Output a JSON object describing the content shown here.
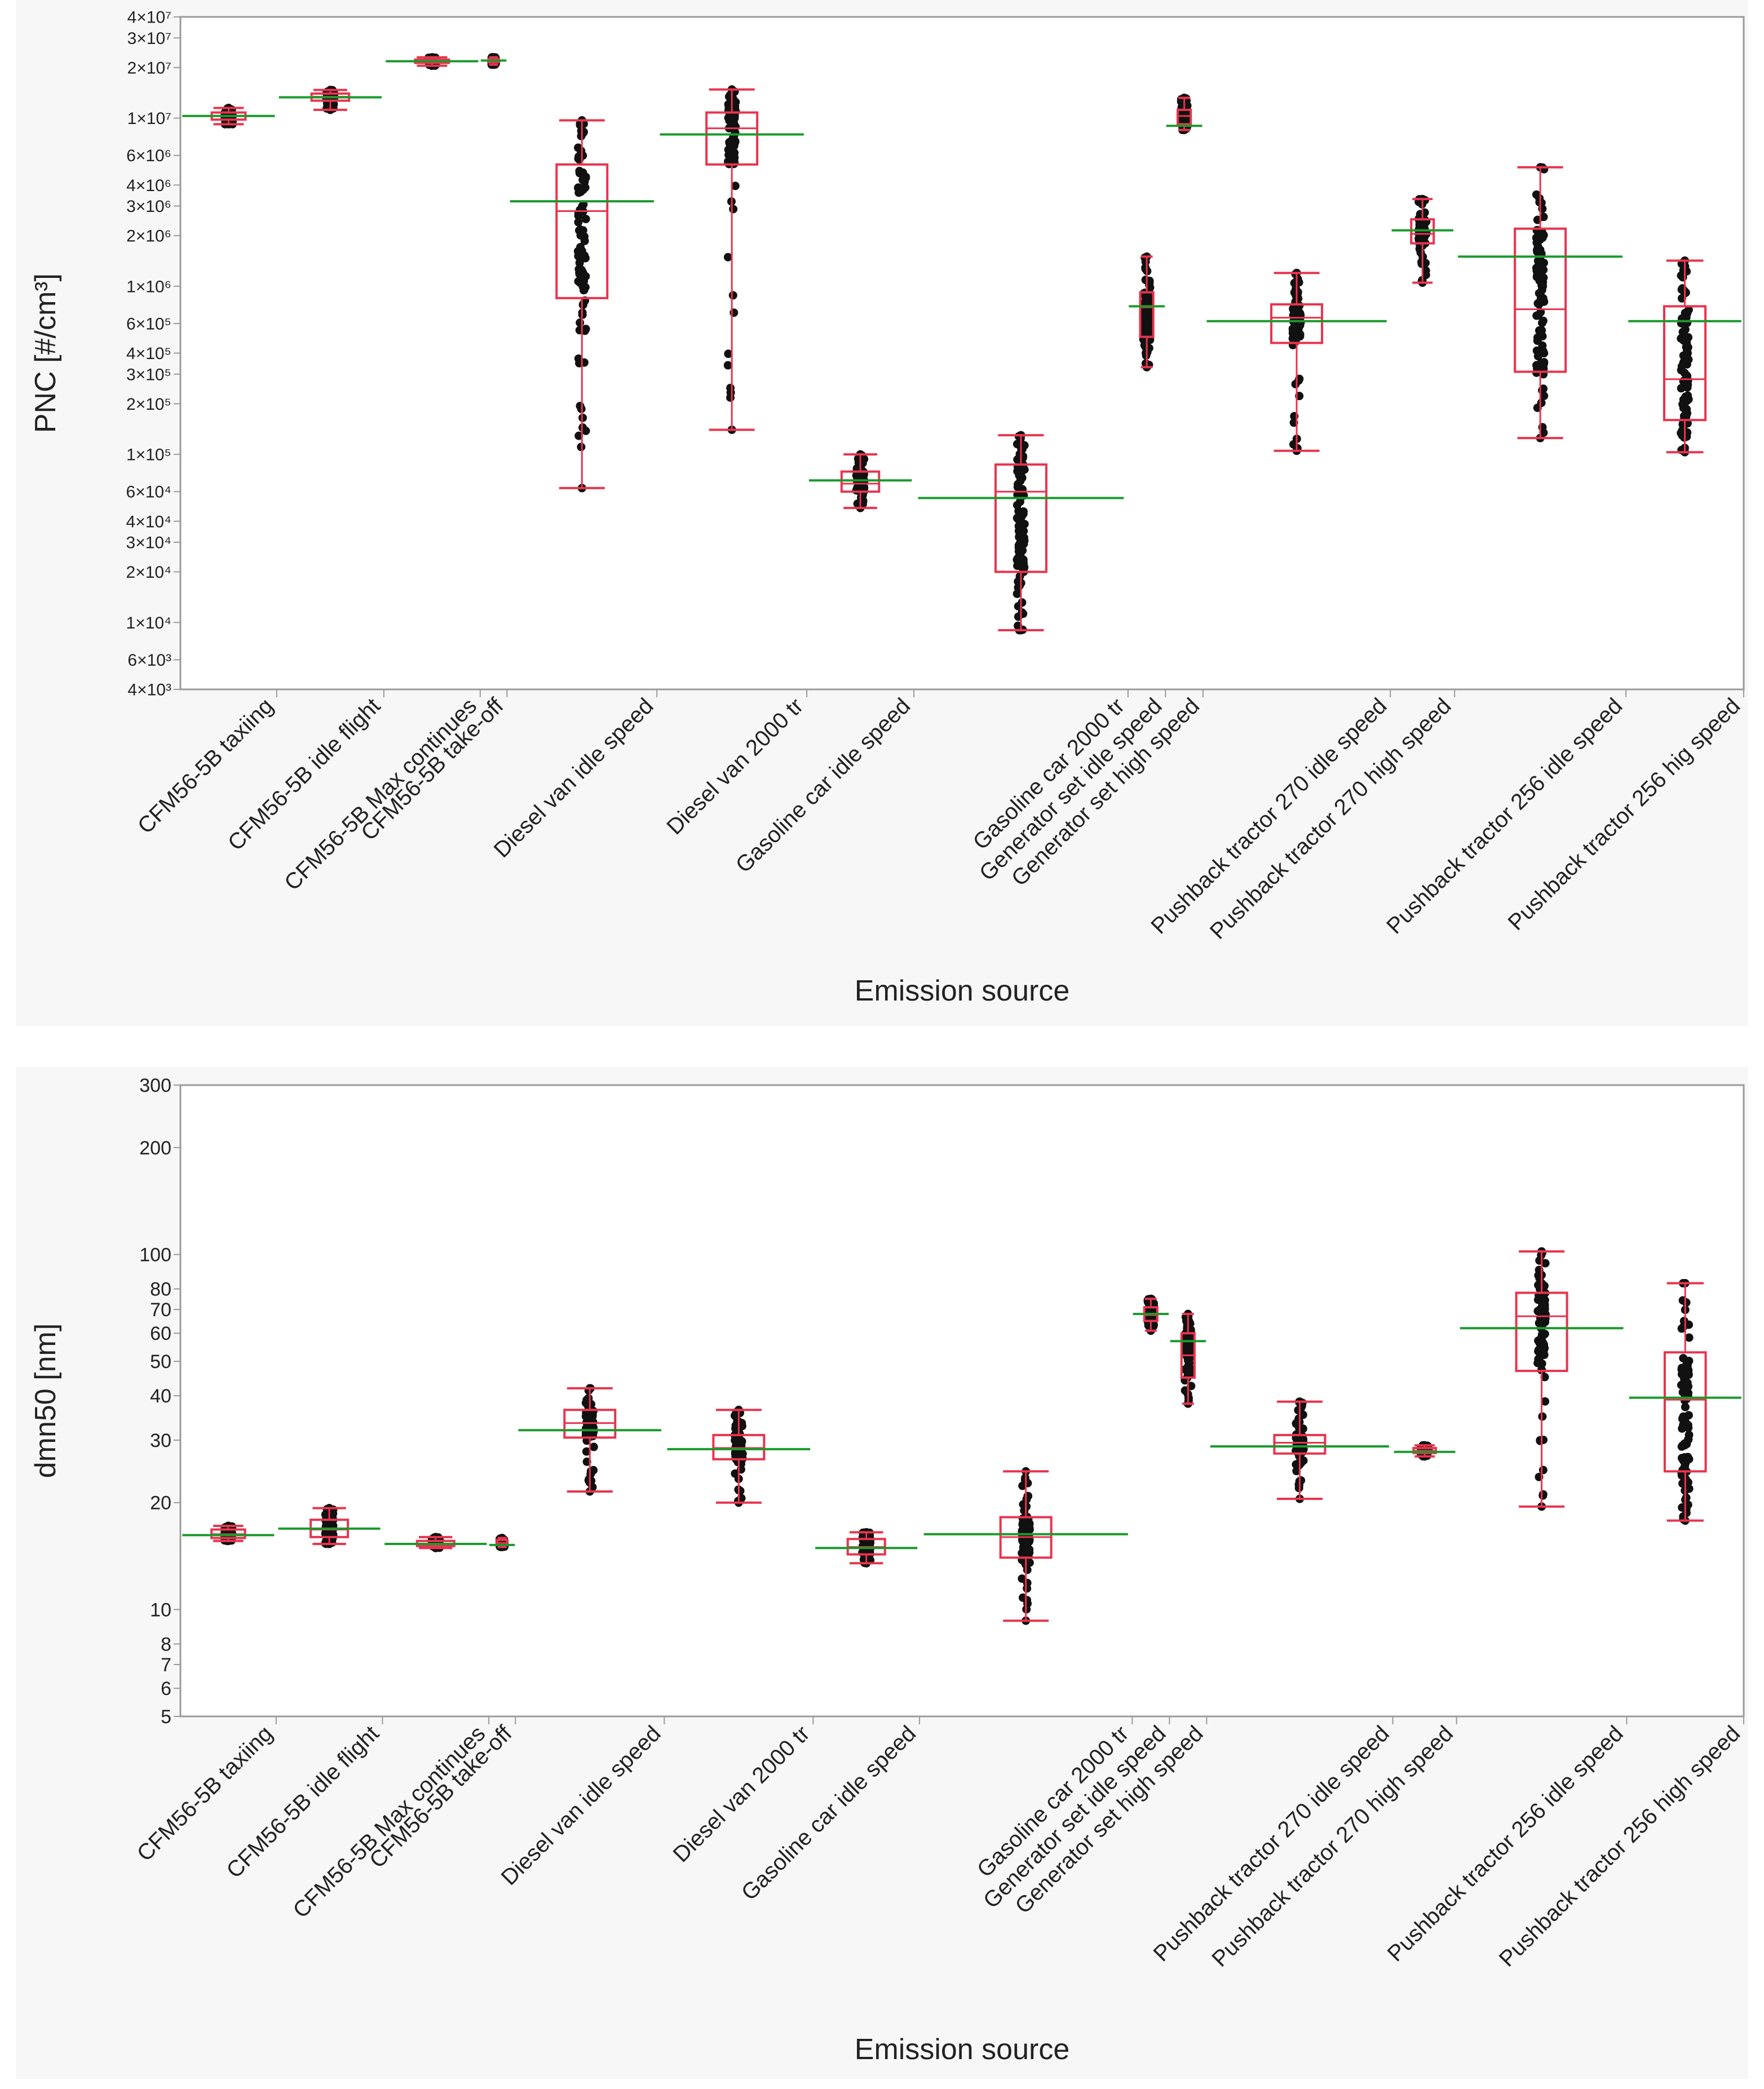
{
  "chart_data": [
    {
      "type": "box",
      "scale": "log",
      "ylabel": "PNC  [#/cm³]",
      "xlabel": "Emission source",
      "ylim": [
        4000,
        40000000
      ],
      "y_ticks": [
        {
          "value": 4000,
          "label": "4×10³"
        },
        {
          "value": 6000,
          "label": "6×10³"
        },
        {
          "value": 10000,
          "label": "1×10⁴"
        },
        {
          "value": 20000,
          "label": "2×10⁴"
        },
        {
          "value": 30000,
          "label": "3×10⁴"
        },
        {
          "value": 40000,
          "label": "4×10⁴"
        },
        {
          "value": 60000,
          "label": "6×10⁴"
        },
        {
          "value": 100000,
          "label": "1×10⁵"
        },
        {
          "value": 200000,
          "label": "2×10⁵"
        },
        {
          "value": 300000,
          "label": "3×10⁵"
        },
        {
          "value": 400000,
          "label": "4×10⁵"
        },
        {
          "value": 600000,
          "label": "6×10⁵"
        },
        {
          "value": 1000000,
          "label": "1×10⁶"
        },
        {
          "value": 2000000,
          "label": "2×10⁶"
        },
        {
          "value": 3000000,
          "label": "3×10⁶"
        },
        {
          "value": 4000000,
          "label": "4×10⁶"
        },
        {
          "value": 6000000,
          "label": "6×10⁶"
        },
        {
          "value": 10000000,
          "label": "1×10⁷"
        },
        {
          "value": 20000000,
          "label": "2×10⁷"
        },
        {
          "value": 30000000,
          "label": "3×10⁷"
        },
        {
          "value": 40000000,
          "label": "4×10⁷"
        }
      ],
      "categories": [
        {
          "name": "CFM56-5B  taxiing",
          "weight": 0.9,
          "min": 9200000,
          "q1": 9800000,
          "median": 10300000,
          "q3": 10800000,
          "max": 11500000,
          "mean": 10300000
        },
        {
          "name": "CFM56-5B  idle flight",
          "weight": 1.0,
          "min": 11200000,
          "q1": 12700000,
          "median": 13400000,
          "q3": 14000000,
          "max": 14700000,
          "mean": 13300000
        },
        {
          "name": "CFM56-5B  Max continues",
          "weight": 0.9,
          "min": 20500000,
          "q1": 21300000,
          "median": 21800000,
          "q3": 22300000,
          "max": 23000000,
          "mean": 21800000
        },
        {
          "name": "CFM56-5B  take-off",
          "weight": 0.25,
          "min": 20800000,
          "q1": 21500000,
          "median": 22000000,
          "q3": 22500000,
          "max": 23000000,
          "mean": 22000000
        },
        {
          "name": "Diesel van idle speed",
          "weight": 1.4,
          "min": 63000,
          "q1": 850000,
          "median": 2800000,
          "q3": 5300000,
          "max": 9700000,
          "mean": 3200000
        },
        {
          "name": "Diesel van 2000 tr",
          "weight": 1.4,
          "min": 140000,
          "q1": 5300000,
          "median": 8700000,
          "q3": 10800000,
          "max": 14800000,
          "mean": 8000000
        },
        {
          "name": "Gasoline car idle speed",
          "weight": 1.0,
          "min": 48000,
          "q1": 60000,
          "median": 67000,
          "q3": 79000,
          "max": 100000,
          "mean": 70000
        },
        {
          "name": "Gasoline car 2000 tr",
          "weight": 2.0,
          "min": 9000,
          "q1": 20000,
          "median": 60000,
          "q3": 87000,
          "max": 130000,
          "mean": 55000
        },
        {
          "name": "Generator set idle speed",
          "weight": 0.35,
          "min": 330000,
          "q1": 500000,
          "median": 750000,
          "q3": 920000,
          "max": 1500000,
          "mean": 760000
        },
        {
          "name": "Generator set high speed",
          "weight": 0.35,
          "min": 8500000,
          "q1": 9200000,
          "median": 10300000,
          "q3": 11200000,
          "max": 13200000,
          "mean": 9000000
        },
        {
          "name": "Pushback tractor 270 idle speed",
          "weight": 1.75,
          "min": 105000,
          "q1": 460000,
          "median": 650000,
          "q3": 780000,
          "max": 1200000,
          "mean": 620000
        },
        {
          "name": "Pushback tractor 270 high speed",
          "weight": 0.6,
          "min": 1050000,
          "q1": 1800000,
          "median": 2050000,
          "q3": 2500000,
          "max": 3300000,
          "mean": 2150000
        },
        {
          "name": "Pushback tractor 256 idle speed",
          "weight": 1.6,
          "min": 125000,
          "q1": 310000,
          "median": 730000,
          "q3": 2200000,
          "max": 5100000,
          "mean": 1500000
        },
        {
          "name": "Pushback tractor 256 hig speed",
          "weight": 1.1,
          "min": 103000,
          "q1": 160000,
          "median": 280000,
          "q3": 760000,
          "max": 1420000,
          "mean": 620000
        }
      ]
    },
    {
      "type": "box",
      "scale": "log",
      "ylabel": "dmn50 [nm]",
      "xlabel": "Emission source",
      "ylim": [
        5,
        300
      ],
      "y_ticks": [
        {
          "value": 5,
          "label": "5"
        },
        {
          "value": 6,
          "label": "6"
        },
        {
          "value": 7,
          "label": "7"
        },
        {
          "value": 8,
          "label": "8"
        },
        {
          "value": 10,
          "label": "10"
        },
        {
          "value": 20,
          "label": "20"
        },
        {
          "value": 30,
          "label": "30"
        },
        {
          "value": 40,
          "label": "40"
        },
        {
          "value": 50,
          "label": "50"
        },
        {
          "value": 60,
          "label": "60"
        },
        {
          "value": 70,
          "label": "70"
        },
        {
          "value": 80,
          "label": "80"
        },
        {
          "value": 100,
          "label": "100"
        },
        {
          "value": 200,
          "label": "200"
        },
        {
          "value": 300,
          "label": "300"
        }
      ],
      "categories": [
        {
          "name": "CFM56-5B  taxiing",
          "weight": 0.9,
          "min": 15.6,
          "q1": 15.9,
          "median": 16.3,
          "q3": 16.8,
          "max": 17.2,
          "mean": 16.2
        },
        {
          "name": "CFM56-5B  idle flight",
          "weight": 1.0,
          "min": 15.3,
          "q1": 16.0,
          "median": 16.8,
          "q3": 17.9,
          "max": 19.3,
          "mean": 16.9
        },
        {
          "name": "CFM56-5B  Max continues",
          "weight": 1.0,
          "min": 14.9,
          "q1": 15.1,
          "median": 15.3,
          "q3": 15.6,
          "max": 16.0,
          "mean": 15.3
        },
        {
          "name": "CFM56-5B  take-off",
          "weight": 0.25,
          "min": 15.0,
          "q1": 15.2,
          "median": 15.4,
          "q3": 15.7,
          "max": 15.9,
          "mean": 15.2
        },
        {
          "name": "Diesel van idle speed",
          "weight": 1.4,
          "min": 21.5,
          "q1": 30.5,
          "median": 33.5,
          "q3": 36.5,
          "max": 42.0,
          "mean": 32.0
        },
        {
          "name": "Diesel van 2000 tr",
          "weight": 1.4,
          "min": 20.0,
          "q1": 26.5,
          "median": 28.5,
          "q3": 31.0,
          "max": 36.5,
          "mean": 28.3
        },
        {
          "name": "Gasoline car idle speed",
          "weight": 1.0,
          "min": 13.5,
          "q1": 14.3,
          "median": 15.0,
          "q3": 15.8,
          "max": 16.5,
          "mean": 14.9
        },
        {
          "name": "Gasoline car 2000 tr",
          "weight": 2.0,
          "min": 9.3,
          "q1": 14.0,
          "median": 16.0,
          "q3": 18.2,
          "max": 24.5,
          "mean": 16.3
        },
        {
          "name": "Generator set idle speed",
          "weight": 0.35,
          "min": 61.0,
          "q1": 65.0,
          "median": 67.5,
          "q3": 71.0,
          "max": 75.0,
          "mean": 68.0
        },
        {
          "name": "Generator set high speed",
          "weight": 0.35,
          "min": 38.0,
          "q1": 45.0,
          "median": 52.0,
          "q3": 60.0,
          "max": 68.0,
          "mean": 57.0
        },
        {
          "name": "Pushback tractor 270 idle speed",
          "weight": 1.75,
          "min": 20.5,
          "q1": 27.5,
          "median": 29.5,
          "q3": 31.0,
          "max": 38.5,
          "mean": 28.8
        },
        {
          "name": "Pushback tractor 270 high speed",
          "weight": 0.6,
          "min": 27.0,
          "q1": 27.6,
          "median": 28.0,
          "q3": 28.5,
          "max": 29.0,
          "mean": 27.8
        },
        {
          "name": "Pushback tractor 256 idle speed",
          "weight": 1.6,
          "min": 19.5,
          "q1": 47.0,
          "median": 67.0,
          "q3": 78.0,
          "max": 102.0,
          "mean": 62.0
        },
        {
          "name": "Pushback tractor 256 high speed",
          "weight": 1.1,
          "min": 17.8,
          "q1": 24.5,
          "median": 39.0,
          "q3": 53.0,
          "max": 83.0,
          "mean": 39.5
        }
      ]
    }
  ],
  "colors": {
    "box": "#e8344e",
    "mean": "#1a9a2c",
    "points": "#111111",
    "axis": "#9a9a9a",
    "panel": "#f7f7f7",
    "plot": "#ffffff"
  }
}
